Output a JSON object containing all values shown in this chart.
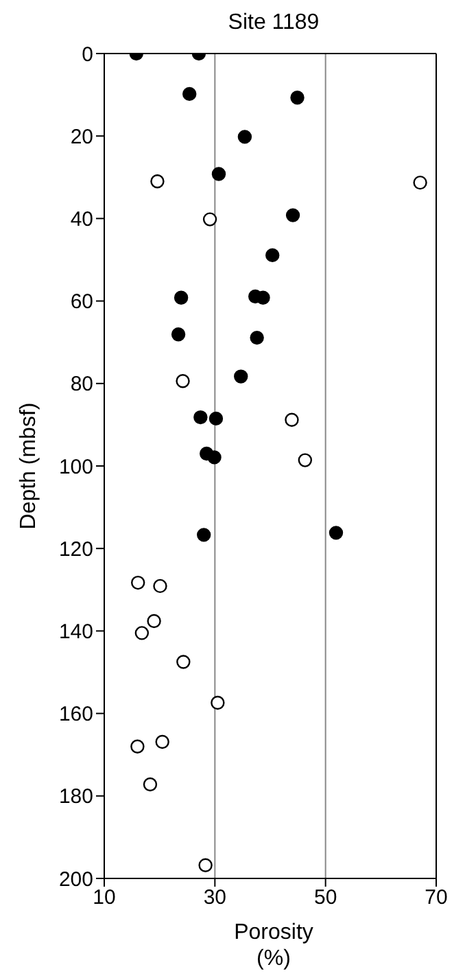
{
  "chart_data": {
    "type": "scatter",
    "title": "Site 1189",
    "xlabel": "Porosity\n(%)",
    "ylabel": "Depth (mbsf)",
    "xlim": [
      10,
      70
    ],
    "xticks": [
      10,
      30,
      50,
      70
    ],
    "ylim": [
      200,
      0
    ],
    "yticks": [
      0,
      20,
      40,
      60,
      80,
      100,
      120,
      140,
      160,
      180,
      200
    ],
    "grid": "x",
    "marker": "circle",
    "series": [
      {
        "color": "#000000",
        "x": [
          15.8,
          27.1,
          25.4,
          44.9,
          35.4,
          30.7,
          44.1,
          40.4,
          23.9,
          37.3,
          38.7,
          23.4,
          37.6,
          34.7,
          27.4,
          30.2,
          28.5,
          29.9,
          28.0,
          51.9
        ],
        "values": [
          0,
          0,
          9.8,
          10.7,
          20.2,
          29.2,
          39.2,
          48.9,
          59.2,
          58.9,
          59.2,
          68.1,
          68.9,
          78.3,
          88.2,
          88.5,
          97.0,
          97.9,
          116.7,
          116.2
        ]
      },
      {
        "color": "#ffffff",
        "x": [
          19.6,
          67.1,
          29.1,
          24.2,
          43.9,
          46.3,
          16.1,
          20.1,
          19.0,
          16.8,
          24.3,
          30.5,
          16.0,
          20.5,
          18.3,
          28.3
        ],
        "values": [
          31.0,
          31.3,
          40.2,
          79.4,
          88.8,
          98.6,
          128.3,
          129.1,
          137.6,
          140.5,
          147.5,
          157.4,
          168.0,
          166.9,
          177.2,
          196.8
        ]
      }
    ]
  }
}
